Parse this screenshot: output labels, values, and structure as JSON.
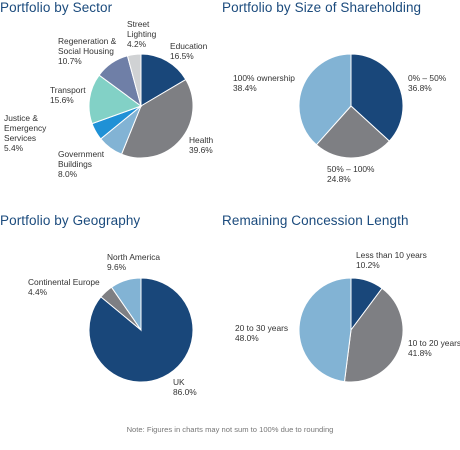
{
  "note": "Note: Figures in charts may not sum to 100% due to rounding",
  "chart_data": [
    {
      "type": "pie",
      "title": "Portfolio by Sector",
      "slices": [
        {
          "label": "Education",
          "value": 16.5,
          "value_label": "16.5%",
          "color": "#19477a"
        },
        {
          "label": "Health",
          "value": 39.6,
          "value_label": "39.6%",
          "color": "#7e7f83"
        },
        {
          "label": "Government Buildings",
          "value": 8.0,
          "value_label": "8.0%",
          "color": "#82b3d4"
        },
        {
          "label": "Justice & Emergency Services",
          "value": 5.4,
          "value_label": "5.4%",
          "color": "#1f91d6"
        },
        {
          "label": "Transport",
          "value": 15.6,
          "value_label": "15.6%",
          "color": "#82d1c6"
        },
        {
          "label": "Regeneration & Social Housing",
          "value": 10.7,
          "value_label": "10.7%",
          "color": "#6f7fa7"
        },
        {
          "label": "Street Lighting",
          "value": 4.2,
          "value_label": "4.2%",
          "color": "#d0d2d4"
        }
      ]
    },
    {
      "type": "pie",
      "title": "Portfolio by Size of Shareholding",
      "slices": [
        {
          "label": "0% – 50%",
          "value": 36.8,
          "value_label": "36.8%",
          "color": "#19477a"
        },
        {
          "label": "50% – 100%",
          "value": 24.8,
          "value_label": "24.8%",
          "color": "#7e7f83"
        },
        {
          "label": "100% ownership",
          "value": 38.4,
          "value_label": "38.4%",
          "color": "#82b3d4"
        }
      ]
    },
    {
      "type": "pie",
      "title": "Portfolio by Geography",
      "slices": [
        {
          "label": "UK",
          "value": 86.0,
          "value_label": "86.0%",
          "color": "#19477a"
        },
        {
          "label": "Continental Europe",
          "value": 4.4,
          "value_label": "4.4%",
          "color": "#7e7f83"
        },
        {
          "label": "North America",
          "value": 9.6,
          "value_label": "9.6%",
          "color": "#82b3d4"
        }
      ]
    },
    {
      "type": "pie",
      "title": "Remaining Concession Length",
      "slices": [
        {
          "label": "Less than 10 years",
          "value": 10.2,
          "value_label": "10.2%",
          "color": "#19477a"
        },
        {
          "label": "10 to 20 years",
          "value": 41.8,
          "value_label": "41.8%",
          "color": "#7e7f83"
        },
        {
          "label": "20 to 30 years",
          "value": 48.0,
          "value_label": "48.0%",
          "color": "#82b3d4"
        }
      ]
    }
  ]
}
